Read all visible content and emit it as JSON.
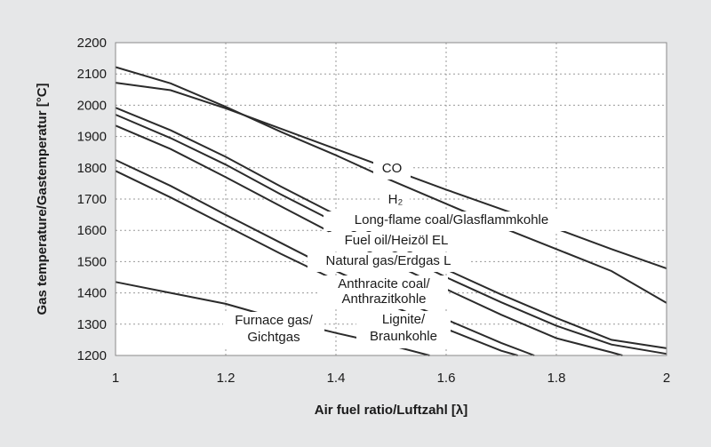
{
  "chart_data": {
    "type": "line",
    "title": "",
    "xlabel": "Air fuel ratio/Luftzahl [λ]",
    "ylabel": "Gas temperature/Gastemperatur [°C]",
    "xlim": [
      1,
      2
    ],
    "ylim": [
      1200,
      2200
    ],
    "xticks": [
      "1",
      "1.2",
      "1.4",
      "1.6",
      "1.8",
      "2"
    ],
    "yticks": [
      "1200",
      "1300",
      "1400",
      "1500",
      "1600",
      "1700",
      "1800",
      "1900",
      "2000",
      "2100",
      "2200"
    ],
    "grid": true,
    "legend": "none",
    "colors": {
      "background": "#e6e7e8",
      "plot_area": "#ffffff",
      "line": "#2b2b2b",
      "grid": "#9a9a9a"
    },
    "series": [
      {
        "label_lines": [
          "CO"
        ],
        "x": [
          1.0,
          1.1,
          1.2,
          1.3,
          1.4,
          1.5,
          1.6,
          1.7,
          1.8,
          1.9,
          2.0
        ],
        "y": [
          2072,
          2048,
          1990,
          1925,
          1860,
          1795,
          1730,
          1668,
          1605,
          1540,
          1478
        ]
      },
      {
        "label_lines": [
          "H₂"
        ],
        "x": [
          1.0,
          1.1,
          1.2,
          1.3,
          1.4,
          1.5,
          1.6,
          1.7,
          1.8,
          1.9,
          2.0
        ],
        "y": [
          2122,
          2070,
          1995,
          1915,
          1840,
          1760,
          1685,
          1610,
          1540,
          1470,
          1368
        ]
      },
      {
        "label_lines": [
          "Long-flame coal/Glasflammkohle"
        ],
        "x": [
          1.0,
          1.1,
          1.2,
          1.3,
          1.4,
          1.5,
          1.6,
          1.7,
          1.8,
          1.9,
          2.0
        ],
        "y": [
          1992,
          1920,
          1835,
          1740,
          1650,
          1560,
          1475,
          1395,
          1320,
          1250,
          1223
        ]
      },
      {
        "label_lines": [
          "Fuel oil/Heizöl EL"
        ],
        "x": [
          1.0,
          1.1,
          1.2,
          1.3,
          1.4,
          1.5,
          1.6,
          1.7,
          1.8,
          1.9,
          2.0
        ],
        "y": [
          1970,
          1895,
          1810,
          1715,
          1625,
          1537,
          1450,
          1370,
          1295,
          1235,
          1205
        ]
      },
      {
        "label_lines": [
          "Natural gas/Erdgas L"
        ],
        "x": [
          1.0,
          1.1,
          1.2,
          1.3,
          1.4,
          1.5,
          1.6,
          1.7,
          1.8,
          1.9,
          1.92
        ],
        "y": [
          1935,
          1860,
          1770,
          1677,
          1585,
          1497,
          1412,
          1330,
          1255,
          1210,
          1200
        ]
      },
      {
        "label_lines": [
          "Anthracite coal/",
          "Anthrazitkohle"
        ],
        "x": [
          1.0,
          1.1,
          1.2,
          1.3,
          1.4,
          1.5,
          1.6,
          1.7,
          1.76
        ],
        "y": [
          1825,
          1742,
          1650,
          1560,
          1470,
          1390,
          1315,
          1240,
          1200
        ]
      },
      {
        "label_lines": [
          "Lignite/",
          "Braunkohle"
        ],
        "x": [
          1.0,
          1.1,
          1.2,
          1.3,
          1.4,
          1.5,
          1.6,
          1.7,
          1.73
        ],
        "y": [
          1790,
          1705,
          1615,
          1525,
          1440,
          1360,
          1285,
          1215,
          1200
        ]
      },
      {
        "label_lines": [
          "Furnace gas/",
          "Gichtgas"
        ],
        "x": [
          1.0,
          1.1,
          1.2,
          1.3,
          1.4,
          1.5,
          1.57
        ],
        "y": [
          1435,
          1400,
          1365,
          1315,
          1272,
          1232,
          1200
        ]
      }
    ]
  }
}
